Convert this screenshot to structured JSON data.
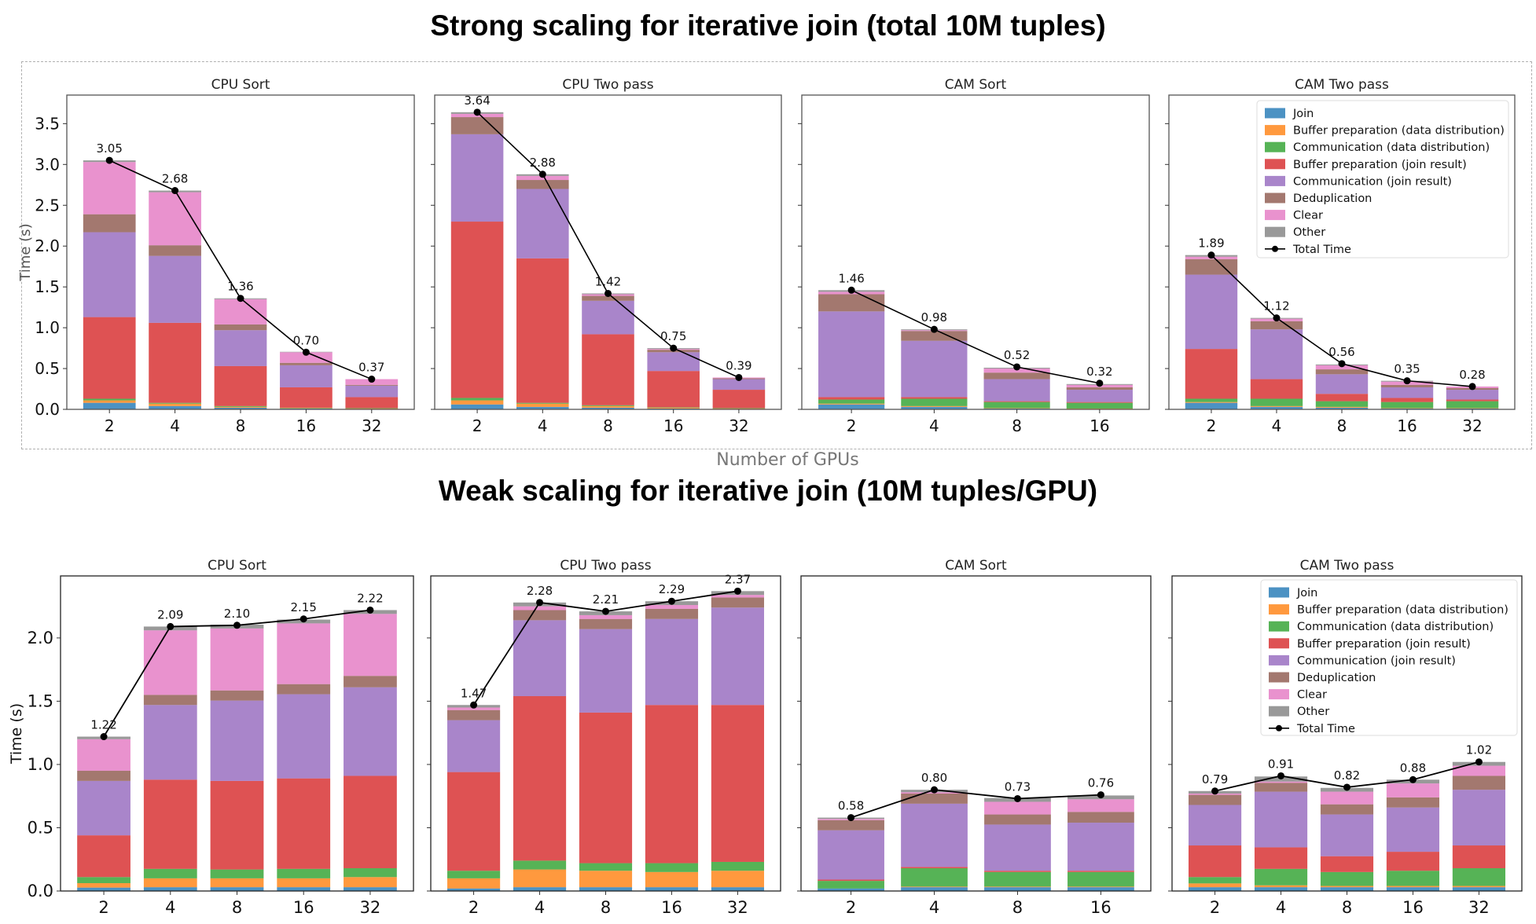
{
  "rows": [
    {
      "title": "Strong scaling for iterative join (total 10M tuples)",
      "xlabel": "Number of GPUs"
    },
    {
      "title": "Weak scaling for iterative join (10M tuples/GPU)"
    }
  ],
  "colors": {
    "Join": "#1f77b4",
    "Buffer preparation (data distribution)": "#ff7f0e",
    "Communication (data distribution)": "#2ca02c",
    "Buffer preparation (join result)": "#d62728",
    "Communication (join result)": "#9467bd",
    "Deduplication": "#8c564b",
    "Clear": "#e377c2",
    "Other": "#7f7f7f",
    "Total Time": "#000000"
  },
  "legend": [
    "Join",
    "Buffer preparation (data distribution)",
    "Communication (data distribution)",
    "Buffer preparation (join result)",
    "Communication (join result)",
    "Deduplication",
    "Clear",
    "Other",
    "Total Time"
  ],
  "chart_data": [
    {
      "row": 0,
      "type": "stacked-bar+line",
      "title": "CPU Sort",
      "ylabel": "Time (s)",
      "ylim": [
        0,
        3.85
      ],
      "yticks": [
        0,
        0.5,
        1,
        1.5,
        2,
        2.5,
        3,
        3.5
      ],
      "categories": [
        "2",
        "4",
        "8",
        "16",
        "32"
      ],
      "series": [
        {
          "name": "Join",
          "values": [
            0.08,
            0.04,
            0.02,
            0.01,
            0.005
          ]
        },
        {
          "name": "Buffer preparation (data distribution)",
          "values": [
            0.03,
            0.03,
            0.01,
            0.005,
            0.005
          ]
        },
        {
          "name": "Communication (data distribution)",
          "values": [
            0.02,
            0.01,
            0.01,
            0.005,
            0.005
          ]
        },
        {
          "name": "Buffer preparation (join result)",
          "values": [
            1.0,
            0.98,
            0.49,
            0.25,
            0.135
          ]
        },
        {
          "name": "Communication (join result)",
          "values": [
            1.04,
            0.82,
            0.44,
            0.27,
            0.14
          ]
        },
        {
          "name": "Deduplication",
          "values": [
            0.22,
            0.13,
            0.07,
            0.03,
            0.01
          ]
        },
        {
          "name": "Clear",
          "values": [
            0.64,
            0.65,
            0.31,
            0.13,
            0.07
          ]
        },
        {
          "name": "Other",
          "values": [
            0.02,
            0.02,
            0.01,
            0.005,
            0.0
          ]
        }
      ],
      "total": {
        "name": "Total Time",
        "values": [
          3.05,
          2.68,
          1.36,
          0.7,
          0.37
        ],
        "labels": [
          "3.05",
          "2.68",
          "1.36",
          "0.70",
          "0.37"
        ]
      }
    },
    {
      "row": 0,
      "type": "stacked-bar+line",
      "title": "CPU Two pass",
      "ylim": [
        0,
        3.85
      ],
      "yticks": [
        0,
        0.5,
        1,
        1.5,
        2,
        2.5,
        3,
        3.5
      ],
      "categories": [
        "2",
        "4",
        "8",
        "16",
        "32"
      ],
      "series": [
        {
          "name": "Join",
          "values": [
            0.06,
            0.03,
            0.02,
            0.01,
            0.005
          ]
        },
        {
          "name": "Buffer preparation (data distribution)",
          "values": [
            0.05,
            0.04,
            0.02,
            0.01,
            0.005
          ]
        },
        {
          "name": "Communication (data distribution)",
          "values": [
            0.03,
            0.01,
            0.01,
            0.005,
            0.005
          ]
        },
        {
          "name": "Buffer preparation (join result)",
          "values": [
            2.16,
            1.77,
            0.87,
            0.445,
            0.225
          ]
        },
        {
          "name": "Communication (join result)",
          "values": [
            1.07,
            0.85,
            0.41,
            0.23,
            0.13
          ]
        },
        {
          "name": "Deduplication",
          "values": [
            0.21,
            0.11,
            0.06,
            0.03,
            0.01
          ]
        },
        {
          "name": "Clear",
          "values": [
            0.04,
            0.05,
            0.02,
            0.01,
            0.01
          ]
        },
        {
          "name": "Other",
          "values": [
            0.02,
            0.02,
            0.01,
            0.01,
            0.0
          ]
        }
      ],
      "total": {
        "name": "Total Time",
        "values": [
          3.64,
          2.88,
          1.42,
          0.75,
          0.39
        ],
        "labels": [
          "3.64",
          "2.88",
          "1.42",
          "0.75",
          "0.39"
        ]
      }
    },
    {
      "row": 0,
      "type": "stacked-bar+line",
      "title": "CAM Sort",
      "ylim": [
        0,
        3.85
      ],
      "yticks": [
        0,
        0.5,
        1,
        1.5,
        2,
        2.5,
        3,
        3.5
      ],
      "categories": [
        "2",
        "4",
        "8",
        "16"
      ],
      "series": [
        {
          "name": "Join",
          "values": [
            0.06,
            0.03,
            0.01,
            0.005
          ]
        },
        {
          "name": "Buffer preparation (data distribution)",
          "values": [
            0.01,
            0.01,
            0.005,
            0.005
          ]
        },
        {
          "name": "Communication (data distribution)",
          "values": [
            0.05,
            0.09,
            0.075,
            0.07
          ]
        },
        {
          "name": "Buffer preparation (join result)",
          "values": [
            0.03,
            0.02,
            0.01,
            0.01
          ]
        },
        {
          "name": "Communication (join result)",
          "values": [
            1.05,
            0.69,
            0.27,
            0.15
          ]
        },
        {
          "name": "Deduplication",
          "values": [
            0.21,
            0.12,
            0.08,
            0.03
          ]
        },
        {
          "name": "Clear",
          "values": [
            0.03,
            0.01,
            0.05,
            0.03
          ]
        },
        {
          "name": "Other",
          "values": [
            0.02,
            0.01,
            0.01,
            0.01
          ]
        }
      ],
      "total": {
        "name": "Total Time",
        "values": [
          1.46,
          0.98,
          0.52,
          0.32
        ],
        "labels": [
          "1.46",
          "0.98",
          "0.52",
          "0.32"
        ]
      }
    },
    {
      "row": 0,
      "type": "stacked-bar+line",
      "title": "CAM Two pass",
      "legend": "upper right",
      "ylim": [
        0,
        3.85
      ],
      "yticks": [
        0,
        0.5,
        1,
        1.5,
        2,
        2.5,
        3,
        3.5
      ],
      "categories": [
        "2",
        "4",
        "8",
        "16",
        "32"
      ],
      "series": [
        {
          "name": "Join",
          "values": [
            0.08,
            0.03,
            0.02,
            0.01,
            0.01
          ]
        },
        {
          "name": "Buffer preparation (data distribution)",
          "values": [
            0.01,
            0.01,
            0.01,
            0.005,
            0.005
          ]
        },
        {
          "name": "Communication (data distribution)",
          "values": [
            0.04,
            0.09,
            0.07,
            0.075,
            0.085
          ]
        },
        {
          "name": "Buffer preparation (join result)",
          "values": [
            0.61,
            0.24,
            0.09,
            0.05,
            0.02
          ]
        },
        {
          "name": "Communication (join result)",
          "values": [
            0.91,
            0.61,
            0.24,
            0.13,
            0.12
          ]
        },
        {
          "name": "Deduplication",
          "values": [
            0.19,
            0.1,
            0.06,
            0.03,
            0.02
          ]
        },
        {
          "name": "Clear",
          "values": [
            0.03,
            0.03,
            0.05,
            0.04,
            0.02
          ]
        },
        {
          "name": "Other",
          "values": [
            0.02,
            0.01,
            0.01,
            0.01,
            0.0
          ]
        }
      ],
      "total": {
        "name": "Total Time",
        "values": [
          1.89,
          1.12,
          0.56,
          0.35,
          0.28
        ],
        "labels": [
          "1.89",
          "1.12",
          "0.56",
          "0.35",
          "0.28"
        ]
      }
    },
    {
      "row": 1,
      "type": "stacked-bar+line",
      "title": "CPU Sort",
      "ylabel": "Time (s)",
      "ylim": [
        0,
        2.49
      ],
      "yticks": [
        0,
        0.5,
        1,
        1.5,
        2
      ],
      "categories": [
        "2",
        "4",
        "8",
        "16",
        "32"
      ],
      "series": [
        {
          "name": "Join",
          "values": [
            0.027,
            0.03,
            0.03,
            0.03,
            0.03
          ]
        },
        {
          "name": "Buffer preparation (data distribution)",
          "values": [
            0.035,
            0.07,
            0.07,
            0.07,
            0.08
          ]
        },
        {
          "name": "Communication (data distribution)",
          "values": [
            0.048,
            0.075,
            0.07,
            0.075,
            0.07
          ]
        },
        {
          "name": "Buffer preparation (join result)",
          "values": [
            0.33,
            0.705,
            0.7,
            0.715,
            0.73
          ]
        },
        {
          "name": "Communication (join result)",
          "values": [
            0.43,
            0.59,
            0.635,
            0.665,
            0.7
          ]
        },
        {
          "name": "Deduplication",
          "values": [
            0.08,
            0.08,
            0.08,
            0.08,
            0.09
          ]
        },
        {
          "name": "Clear",
          "values": [
            0.25,
            0.51,
            0.49,
            0.48,
            0.49
          ]
        },
        {
          "name": "Other",
          "values": [
            0.02,
            0.03,
            0.03,
            0.03,
            0.03
          ]
        }
      ],
      "total": {
        "name": "Total Time",
        "values": [
          1.22,
          2.09,
          2.1,
          2.15,
          2.22
        ],
        "labels": [
          "1.22",
          "2.09",
          "2.10",
          "2.15",
          "2.22"
        ]
      }
    },
    {
      "row": 1,
      "type": "stacked-bar+line",
      "title": "CPU Two pass",
      "ylim": [
        0,
        2.49
      ],
      "yticks": [
        0,
        0.5,
        1,
        1.5,
        2
      ],
      "categories": [
        "2",
        "4",
        "8",
        "16",
        "32"
      ],
      "series": [
        {
          "name": "Join",
          "values": [
            0.02,
            0.03,
            0.03,
            0.03,
            0.03
          ]
        },
        {
          "name": "Buffer preparation (data distribution)",
          "values": [
            0.08,
            0.14,
            0.13,
            0.12,
            0.13
          ]
        },
        {
          "name": "Communication (data distribution)",
          "values": [
            0.06,
            0.07,
            0.06,
            0.07,
            0.07
          ]
        },
        {
          "name": "Buffer preparation (join result)",
          "values": [
            0.78,
            1.3,
            1.19,
            1.25,
            1.24
          ]
        },
        {
          "name": "Communication (join result)",
          "values": [
            0.41,
            0.6,
            0.66,
            0.68,
            0.77
          ]
        },
        {
          "name": "Deduplication",
          "values": [
            0.08,
            0.08,
            0.08,
            0.08,
            0.08
          ]
        },
        {
          "name": "Clear",
          "values": [
            0.02,
            0.03,
            0.03,
            0.03,
            0.02
          ]
        },
        {
          "name": "Other",
          "values": [
            0.02,
            0.03,
            0.03,
            0.03,
            0.03
          ]
        }
      ],
      "total": {
        "name": "Total Time",
        "values": [
          1.47,
          2.28,
          2.21,
          2.29,
          2.37
        ],
        "labels": [
          "1.47",
          "2.28",
          "2.21",
          "2.29",
          "2.37"
        ]
      }
    },
    {
      "row": 1,
      "type": "stacked-bar+line",
      "title": "CAM Sort",
      "ylim": [
        0,
        2.49
      ],
      "yticks": [
        0,
        0.5,
        1,
        1.5,
        2
      ],
      "categories": [
        "2",
        "4",
        "8",
        "16"
      ],
      "series": [
        {
          "name": "Join",
          "values": [
            0.02,
            0.03,
            0.03,
            0.03
          ]
        },
        {
          "name": "Buffer preparation (data distribution)",
          "values": [
            0.0,
            0.005,
            0.005,
            0.005
          ]
        },
        {
          "name": "Communication (data distribution)",
          "values": [
            0.06,
            0.145,
            0.115,
            0.115
          ]
        },
        {
          "name": "Buffer preparation (join result)",
          "values": [
            0.01,
            0.01,
            0.01,
            0.01
          ]
        },
        {
          "name": "Communication (join result)",
          "values": [
            0.39,
            0.5,
            0.365,
            0.38
          ]
        },
        {
          "name": "Deduplication",
          "values": [
            0.08,
            0.08,
            0.08,
            0.085
          ]
        },
        {
          "name": "Clear",
          "values": [
            0.01,
            0.01,
            0.1,
            0.1
          ]
        },
        {
          "name": "Other",
          "values": [
            0.01,
            0.02,
            0.03,
            0.03
          ]
        }
      ],
      "total": {
        "name": "Total Time",
        "values": [
          0.58,
          0.8,
          0.73,
          0.76
        ],
        "labels": [
          "0.58",
          "0.80",
          "0.73",
          "0.76"
        ]
      }
    },
    {
      "row": 1,
      "type": "stacked-bar+line",
      "title": "CAM Two pass",
      "legend": "upper right",
      "ylim": [
        0,
        2.49
      ],
      "yticks": [
        0,
        0.5,
        1,
        1.5,
        2
      ],
      "categories": [
        "2",
        "4",
        "8",
        "16",
        "32"
      ],
      "series": [
        {
          "name": "Join",
          "values": [
            0.03,
            0.03,
            0.03,
            0.03,
            0.03
          ]
        },
        {
          "name": "Buffer preparation (data distribution)",
          "values": [
            0.03,
            0.015,
            0.01,
            0.01,
            0.01
          ]
        },
        {
          "name": "Communication (data distribution)",
          "values": [
            0.05,
            0.13,
            0.11,
            0.12,
            0.14
          ]
        },
        {
          "name": "Buffer preparation (join result)",
          "values": [
            0.25,
            0.17,
            0.125,
            0.15,
            0.18
          ]
        },
        {
          "name": "Communication (join result)",
          "values": [
            0.32,
            0.44,
            0.33,
            0.35,
            0.44
          ]
        },
        {
          "name": "Deduplication",
          "values": [
            0.08,
            0.07,
            0.08,
            0.08,
            0.11
          ]
        },
        {
          "name": "Clear",
          "values": [
            0.01,
            0.01,
            0.1,
            0.11,
            0.08
          ]
        },
        {
          "name": "Other",
          "values": [
            0.02,
            0.04,
            0.03,
            0.03,
            0.03
          ]
        }
      ],
      "total": {
        "name": "Total Time",
        "values": [
          0.79,
          0.91,
          0.82,
          0.88,
          1.02
        ],
        "labels": [
          "0.79",
          "0.91",
          "0.82",
          "0.88",
          "1.02"
        ]
      }
    }
  ]
}
